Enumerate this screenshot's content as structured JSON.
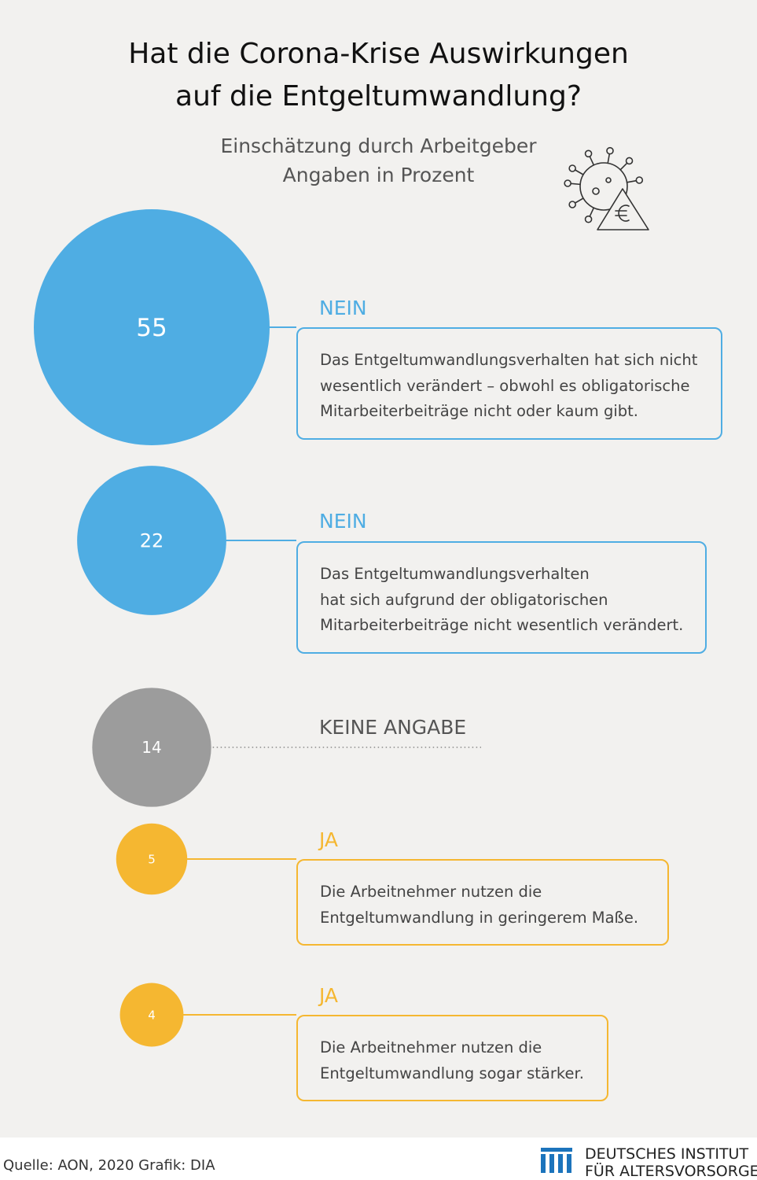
{
  "header": {
    "title_lines": [
      "Hat die Corona-Krise Auswirkungen",
      "auf die Entgeltumwandlung?"
    ],
    "subtitle_lines": [
      "Einschätzung durch Arbeitgeber",
      "Angaben in Prozent"
    ],
    "icon": "virus-euro-warning-icon"
  },
  "colors": {
    "nein": "#4fade3",
    "keine_angabe": "#9c9c9c",
    "ja": "#f5b731",
    "background": "#f2f1ef"
  },
  "chart_data": {
    "type": "bubble",
    "title": "Hat die Corona-Krise Auswirkungen auf die Entgeltumwandlung?",
    "subtitle": "Einschätzung durch Arbeitgeber — Angaben in Prozent",
    "unit": "%",
    "items": [
      {
        "value": 55,
        "value_label": "55",
        "category": "NEIN",
        "description_lines": [
          "Das Entgeltumwandlungsverhalten hat sich nicht",
          "wesentlich verändert – obwohl es obligatorische",
          "Mitarbeiterbeiträge nicht oder kaum gibt."
        ],
        "color": "#4fade3"
      },
      {
        "value": 22,
        "value_label": "22",
        "category": "NEIN",
        "description_lines": [
          "Das Entgeltumwandlungsverhalten",
          "hat sich aufgrund der obligatorischen",
          "Mitarbeiterbeiträge nicht wesentlich verändert."
        ],
        "color": "#4fade3"
      },
      {
        "value": 14,
        "value_label": "14",
        "category": "KEINE ANGABE",
        "description_lines": [],
        "color": "#9c9c9c"
      },
      {
        "value": 5,
        "value_label": "5",
        "category": "JA",
        "description_lines": [
          "Die Arbeitnehmer nutzen die",
          "Entgeltumwandlung in geringerem Maße."
        ],
        "color": "#f5b731"
      },
      {
        "value": 4,
        "value_label": "4",
        "category": "JA",
        "description_lines": [
          "Die Arbeitnehmer nutzen die",
          "Entgeltumwandlung sogar stärker."
        ],
        "color": "#f5b731"
      }
    ]
  },
  "footer": {
    "source": "Quelle: AON, 2020  Grafik: DIA",
    "org_lines": [
      "DEUTSCHES INSTITUT",
      "FÜR ALTERSVORSORGE"
    ]
  }
}
